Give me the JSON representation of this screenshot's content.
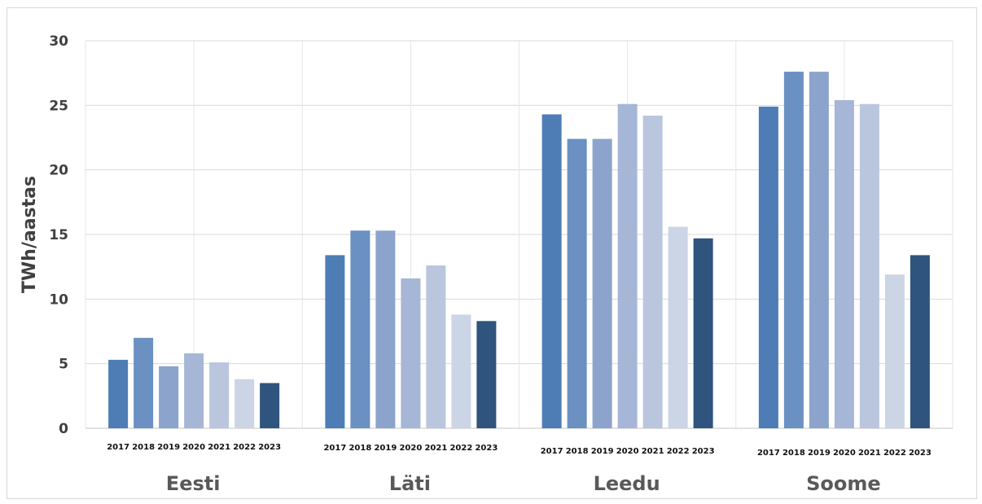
{
  "chart_data": {
    "type": "bar",
    "ylabel": "TWh/aastas",
    "ylim": [
      0,
      30
    ],
    "yticks": [
      0,
      5,
      10,
      15,
      20,
      25,
      30
    ],
    "grid": true,
    "categories": [
      "Eesti",
      "Läti",
      "Leedu",
      "Soome"
    ],
    "series": [
      {
        "name": "2017",
        "color": "#4e7db5",
        "values": [
          5.3,
          13.4,
          24.3,
          24.9
        ]
      },
      {
        "name": "2018",
        "color": "#6b90c2",
        "values": [
          7.0,
          15.3,
          22.4,
          27.6
        ]
      },
      {
        "name": "2019",
        "color": "#8ca4cb",
        "values": [
          4.8,
          15.3,
          22.4,
          27.6
        ]
      },
      {
        "name": "2020",
        "color": "#a6b6d6",
        "values": [
          5.8,
          11.6,
          25.1,
          25.4
        ]
      },
      {
        "name": "2021",
        "color": "#bac6de",
        "values": [
          5.1,
          12.6,
          24.2,
          25.1
        ]
      },
      {
        "name": "2022",
        "color": "#ccd5e6",
        "values": [
          3.8,
          8.8,
          15.6,
          11.9
        ]
      },
      {
        "name": "2023",
        "color": "#2f547d",
        "values": [
          3.5,
          8.3,
          14.7,
          13.4
        ]
      }
    ]
  }
}
